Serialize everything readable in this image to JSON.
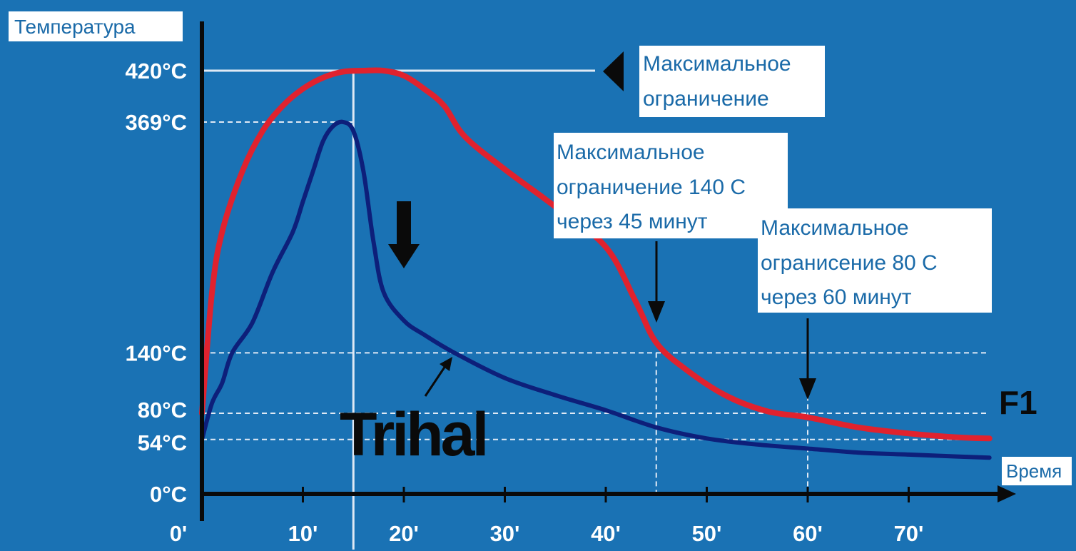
{
  "chart_data": {
    "type": "line",
    "ylabel": "Температура",
    "xlabel": "Время",
    "x_ticks": [
      "0'",
      "10'",
      "20'",
      "30'",
      "40'",
      "50'",
      "60'",
      "70'"
    ],
    "x_tick_values": [
      0,
      10,
      20,
      30,
      40,
      50,
      60,
      70
    ],
    "y_ticks": [
      {
        "label": "420°C",
        "value": 420
      },
      {
        "label": "369°C",
        "value": 369
      },
      {
        "label": "140°C",
        "value": 140
      },
      {
        "label": "80°C",
        "value": 80
      },
      {
        "label": "54°C",
        "value": 54
      },
      {
        "label": "0°C",
        "value": 0
      }
    ],
    "series": [
      {
        "name": "F1",
        "color": "#e0222e",
        "x": [
          0,
          1,
          2,
          4,
          6,
          8,
          10,
          12,
          14,
          16,
          18,
          20,
          22,
          24,
          26,
          30,
          35,
          40,
          43,
          45,
          48,
          52,
          56,
          60,
          65,
          70,
          75,
          78
        ],
        "values": [
          80,
          200,
          260,
          320,
          360,
          385,
          402,
          413,
          419,
          420,
          420,
          415,
          402,
          385,
          355,
          322,
          285,
          245,
          190,
          150,
          123,
          97,
          82,
          76,
          66,
          60,
          56,
          55
        ]
      },
      {
        "name": "Trihal",
        "color": "#0d1f7a",
        "x": [
          0,
          1,
          2,
          3,
          5,
          7,
          9,
          10,
          11,
          12,
          13,
          14,
          15,
          16,
          17,
          18,
          20,
          22,
          25,
          30,
          35,
          40,
          45,
          50,
          55,
          60,
          65,
          70,
          75,
          78
        ],
        "values": [
          54,
          90,
          110,
          140,
          170,
          220,
          260,
          290,
          320,
          350,
          365,
          369,
          360,
          320,
          250,
          200,
          172,
          158,
          140,
          115,
          98,
          83,
          66,
          55,
          49,
          45,
          41,
          39,
          37,
          36
        ]
      }
    ],
    "reference_lines": [
      {
        "value": 420,
        "x_end": 15
      },
      {
        "value": 369,
        "x_end": 15
      },
      {
        "value": 140,
        "x_end": 78
      },
      {
        "value": 80,
        "x_end": 78
      },
      {
        "value": 54,
        "x_end": 78
      }
    ],
    "vertical_markers": [
      {
        "x": 15,
        "style": "solid"
      },
      {
        "x": 45,
        "style": "dashed"
      },
      {
        "x": 60,
        "style": "dashed"
      }
    ],
    "annotations": [
      {
        "lines": [
          "Максимальное",
          "ограничение"
        ]
      },
      {
        "lines": [
          "Максимальное",
          "ограничение 140 С",
          "через 45 минут"
        ]
      },
      {
        "lines": [
          "Максимальное",
          "огранисение 80 С",
          "через 60 минут"
        ]
      }
    ],
    "xlim": [
      0,
      78
    ],
    "ylim": [
      0,
      420
    ]
  }
}
